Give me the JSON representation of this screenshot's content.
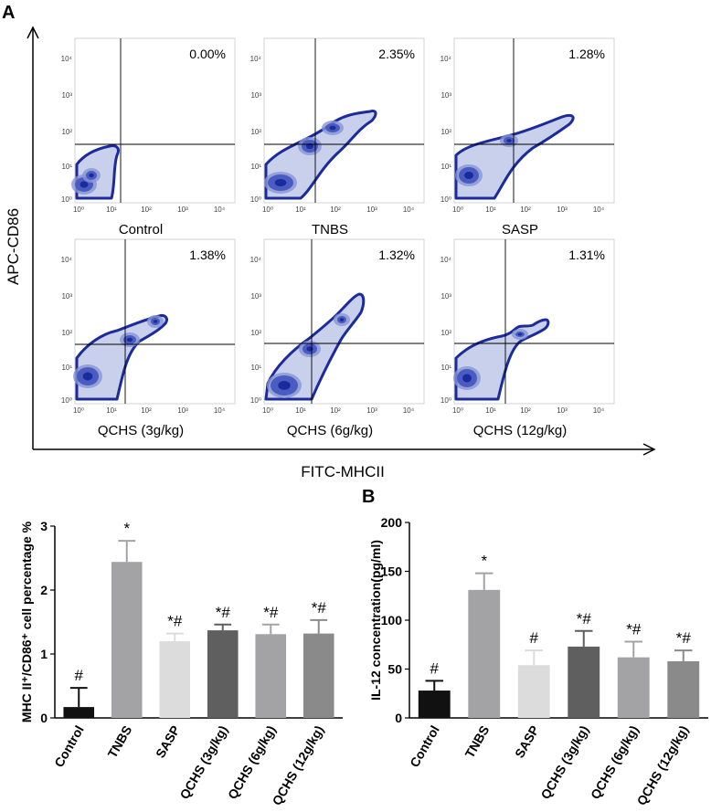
{
  "panel_a": {
    "letter": "A",
    "x_axis_title": "FITC-MHCII",
    "y_axis_title": "APC-CD86",
    "tick_labels": [
      "10⁰",
      "10¹",
      "10²",
      "10³",
      "10⁴"
    ],
    "plots": [
      {
        "name": "Control",
        "percentage": "0.00%"
      },
      {
        "name": "TNBS",
        "percentage": "2.35%"
      },
      {
        "name": "SASP",
        "percentage": "1.28%"
      },
      {
        "name": "QCHS (3g/kg)",
        "percentage": "1.38%"
      },
      {
        "name": "QCHS (6g/kg)",
        "percentage": "1.32%"
      },
      {
        "name": "QCHS (12g/kg)",
        "percentage": "1.31%"
      }
    ],
    "colors": {
      "dense": "#1c2b9c",
      "light": "#c9d0ec",
      "gate": "#000000"
    }
  },
  "chart_data": [
    {
      "type": "bar",
      "panel_letter": "",
      "title": "",
      "xlabel": "",
      "ylabel": "MHC II⁺/CD86⁺ cell percentage %",
      "ylim": [
        0,
        3
      ],
      "yticks": [
        "0",
        "1",
        "2",
        "3"
      ],
      "categories": [
        "Control",
        "TNBS",
        "SASP",
        "QCHS (3g/kg)",
        "QCHS (6g/kg)",
        "QCHS (12g/kg)"
      ],
      "values": [
        0.17,
        2.44,
        1.2,
        1.37,
        1.31,
        1.32
      ],
      "errors": [
        0.3,
        0.33,
        0.12,
        0.09,
        0.15,
        0.21
      ],
      "significance": [
        "#",
        "*",
        "*#",
        "*#",
        "*#",
        "*#"
      ],
      "colors": [
        "#111111",
        "#a3a3a6",
        "#dcdcdc",
        "#5f5f5f",
        "#a3a3a6",
        "#8a8a8a"
      ]
    },
    {
      "type": "bar",
      "panel_letter": "B",
      "title": "",
      "xlabel": "",
      "ylabel": "IL-12 concentration(pg/ml)",
      "ylim": [
        0,
        200
      ],
      "yticks": [
        "0",
        "50",
        "100",
        "150",
        "200"
      ],
      "categories": [
        "Control",
        "TNBS",
        "SASP",
        "QCHS (3g/kg)",
        "QCHS (6g/kg)",
        "QCHS (12g/kg)"
      ],
      "values": [
        28,
        131,
        54,
        73,
        62,
        58
      ],
      "errors": [
        10,
        17,
        15,
        16,
        16,
        11
      ],
      "significance": [
        "#",
        "*",
        "#",
        "*#",
        "*#",
        "*#"
      ],
      "colors": [
        "#111111",
        "#a3a3a6",
        "#dcdcdc",
        "#5f5f5f",
        "#a3a3a6",
        "#8a8a8a"
      ]
    }
  ]
}
